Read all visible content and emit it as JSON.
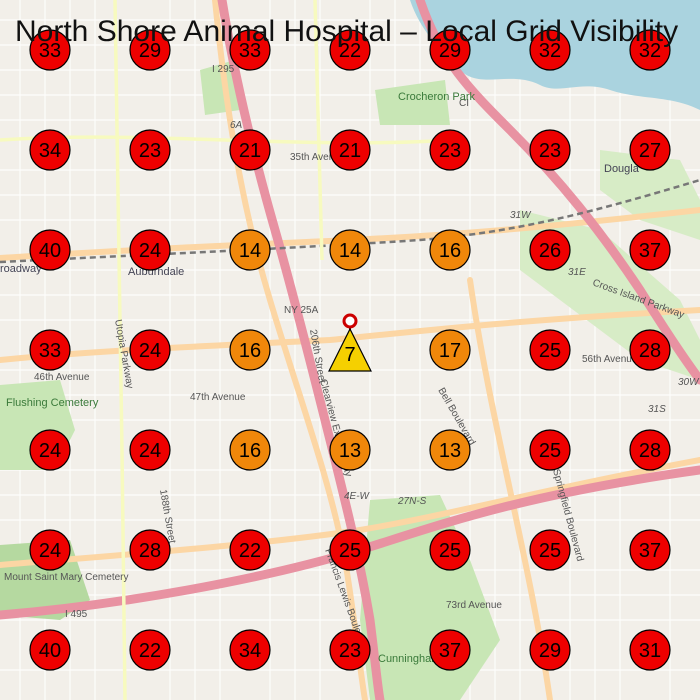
{
  "title": "North Shore Animal Hospital – Local Grid Visibility",
  "colors": {
    "high": "#ee0000",
    "mid": "#f0870a",
    "top": "#f5d000",
    "water": "#aad3df",
    "park": "#c8e6b5",
    "highway": "#e892a2",
    "primary": "#fcd6a4"
  },
  "legend_rule": "rank <= 10 yellow, 11-20 orange, 21+ red",
  "grid": {
    "rows": [
      [
        33,
        29,
        33,
        22,
        29,
        32,
        32
      ],
      [
        34,
        23,
        21,
        21,
        23,
        23,
        27
      ],
      [
        40,
        24,
        14,
        14,
        16,
        26,
        37
      ],
      [
        33,
        24,
        16,
        7,
        17,
        25,
        28
      ],
      [
        24,
        24,
        16,
        13,
        13,
        25,
        28
      ],
      [
        24,
        28,
        22,
        25,
        25,
        25,
        37
      ],
      [
        40,
        22,
        34,
        23,
        37,
        29,
        31
      ]
    ]
  },
  "map_labels": {
    "i295": "I 295",
    "ci": "CI",
    "crocheron": "Crocheron Park",
    "douglaston": "Dougla",
    "auburndale": "Auburndale",
    "broadway": "roadway",
    "ny25a": "NY 25A",
    "ave35": "35th Avenue",
    "ave46": "46th Avenue",
    "ave47": "47th Avenue",
    "ave56": "56th Avenue",
    "ave73": "73rd Avenue",
    "bell": "Bell Boulevard",
    "utopia": "Utopia Parkway",
    "cross_island": "Cross Island Parkway",
    "flushing_cem": "Flushing Cemetery",
    "mount_saint": "Mount Saint Mary Cemetery",
    "st188": "188th Street",
    "st206": "206th Street",
    "clearview": "Clearview Expressway",
    "francis": "Francis Lewis Boulevard",
    "i495": "I 495",
    "cunningham": "Cunningham Park",
    "springfield": "Springfield Boulevard",
    "e4w": "4E-W",
    "e27ns": "27N-S",
    "e31e": "31E",
    "e31s": "31S",
    "e30w": "30W",
    "e31w": "31W",
    "e6a": "6A"
  }
}
